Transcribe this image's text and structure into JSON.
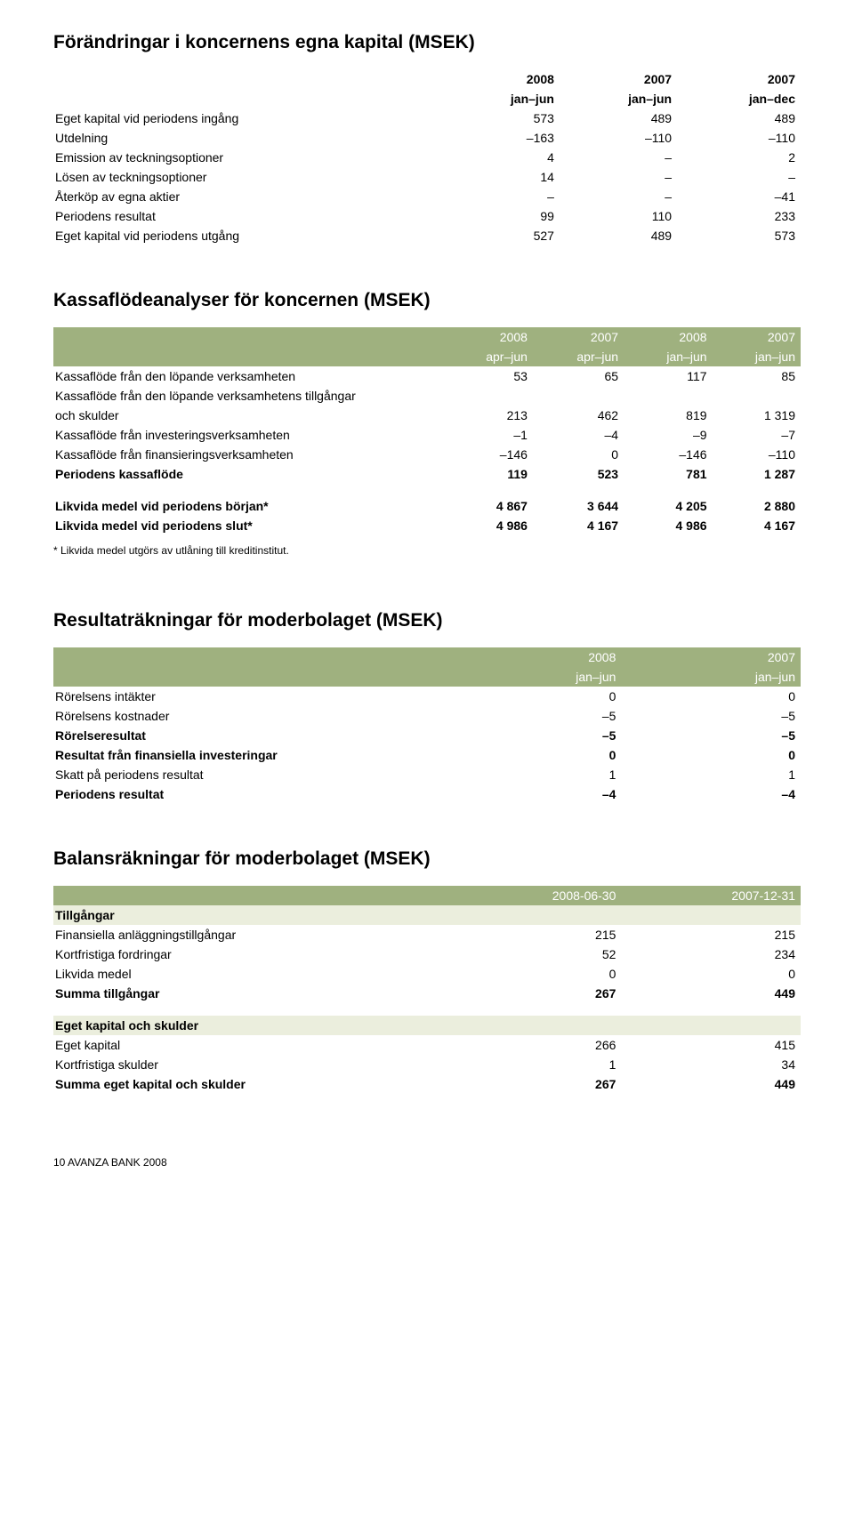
{
  "t1": {
    "title": "Förändringar i koncernens egna kapital (MSEK)",
    "h1": [
      "",
      "2008",
      "2007",
      "2007"
    ],
    "h2": [
      "",
      "jan–jun",
      "jan–jun",
      "jan–dec"
    ],
    "r1": [
      "Eget kapital vid periodens ingång",
      "573",
      "489",
      "489"
    ],
    "r2": [
      "Utdelning",
      "–163",
      "–110",
      "–110"
    ],
    "r3": [
      "Emission av teckningsoptioner",
      "4",
      "–",
      "2"
    ],
    "r4": [
      "Lösen av teckningsoptioner",
      "14",
      "–",
      "–"
    ],
    "r5": [
      "Återköp av egna aktier",
      "–",
      "–",
      "–41"
    ],
    "r6": [
      "Periodens resultat",
      "99",
      "110",
      "233"
    ],
    "r7": [
      "Eget kapital vid periodens utgång",
      "527",
      "489",
      "573"
    ]
  },
  "t2": {
    "title": "Kassaflödeanalyser för koncernen (MSEK)",
    "h1": [
      "",
      "2008",
      "2007",
      "2008",
      "2007"
    ],
    "h2": [
      "",
      "apr–jun",
      "apr–jun",
      "jan–jun",
      "jan–jun"
    ],
    "r1": [
      "Kassaflöde från den löpande verksamheten",
      "53",
      "65",
      "117",
      "85"
    ],
    "r2a": "Kassaflöde från den löpande verksamhetens tillgångar",
    "r2b": [
      "och skulder",
      "213",
      "462",
      "819",
      "1 319"
    ],
    "r3": [
      "Kassaflöde från investeringsverksamheten",
      "–1",
      "–4",
      "–9",
      "–7"
    ],
    "r4": [
      "Kassaflöde från finansieringsverksamheten",
      "–146",
      "0",
      "–146",
      "–110"
    ],
    "r5": [
      "Periodens kassaflöde",
      "119",
      "523",
      "781",
      "1 287"
    ],
    "r6": [
      "Likvida medel vid periodens början*",
      "4 867",
      "3 644",
      "4 205",
      "2 880"
    ],
    "r7": [
      "Likvida medel vid periodens slut*",
      "4 986",
      "4 167",
      "4 986",
      "4 167"
    ],
    "footnote": "* Likvida medel utgörs av utlåning till kreditinstitut."
  },
  "t3": {
    "title": "Resultaträkningar för moderbolaget (MSEK)",
    "h1": [
      "",
      "2008",
      "2007"
    ],
    "h2": [
      "",
      "jan–jun",
      "jan–jun"
    ],
    "r1": [
      "Rörelsens intäkter",
      "0",
      "0"
    ],
    "r2": [
      "Rörelsens kostnader",
      "–5",
      "–5"
    ],
    "r3": [
      "Rörelseresultat",
      "–5",
      "–5"
    ],
    "r4": [
      "Resultat från finansiella investeringar",
      "0",
      "0"
    ],
    "r5": [
      "Skatt på periodens resultat",
      "1",
      "1"
    ],
    "r6": [
      "Periodens resultat",
      "–4",
      "–4"
    ]
  },
  "t4": {
    "title": "Balansräkningar för moderbolaget (MSEK)",
    "h1": [
      "",
      "2008-06-30",
      "2007-12-31"
    ],
    "r1": [
      "Tillgångar",
      "",
      ""
    ],
    "r2": [
      "Finansiella anläggningstillgångar",
      "215",
      "215"
    ],
    "r3": [
      "Kortfristiga fordringar",
      "52",
      "234"
    ],
    "r4": [
      "Likvida medel",
      "0",
      "0"
    ],
    "r5": [
      "Summa tillgångar",
      "267",
      "449"
    ],
    "r6": [
      "Eget kapital och skulder",
      "",
      ""
    ],
    "r7": [
      "Eget kapital",
      "266",
      "415"
    ],
    "r8": [
      "Kortfristiga skulder",
      "1",
      "34"
    ],
    "r9": [
      "Summa eget kapital och skulder",
      "267",
      "449"
    ]
  },
  "footer": "10   AVANZA BANK 2008"
}
